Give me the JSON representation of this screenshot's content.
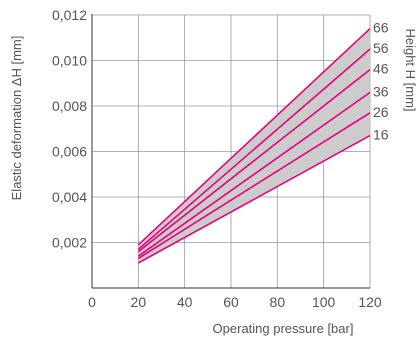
{
  "chart_data": {
    "type": "line",
    "xlabel": "Operating pressure [bar]",
    "ylabel": "Elastic deformation ΔH [mm]",
    "right_label": "Height H [mm]",
    "xlim": [
      0,
      120
    ],
    "ylim": [
      0,
      0.012
    ],
    "xticks": [
      0,
      20,
      40,
      60,
      80,
      100,
      120
    ],
    "xtick_labels": [
      "0",
      "20",
      "40",
      "60",
      "80",
      "100",
      "120"
    ],
    "yticks": [
      0.002,
      0.004,
      0.006,
      0.008,
      0.01,
      0.012
    ],
    "ytick_labels": [
      "0,002",
      "0,004",
      "0,006",
      "0,008",
      "0,010",
      "0,012"
    ],
    "grid": true,
    "band_fill": "#cccccc",
    "line_color": "#e6007e",
    "series": [
      {
        "name": "66",
        "x": [
          20,
          120
        ],
        "y": [
          0.0019,
          0.0114
        ]
      },
      {
        "name": "56",
        "x": [
          20,
          120
        ],
        "y": [
          0.0017,
          0.0105
        ]
      },
      {
        "name": "46",
        "x": [
          20,
          120
        ],
        "y": [
          0.0016,
          0.0096
        ]
      },
      {
        "name": "36",
        "x": [
          20,
          120
        ],
        "y": [
          0.0014,
          0.0086
        ]
      },
      {
        "name": "26",
        "x": [
          20,
          120
        ],
        "y": [
          0.0013,
          0.0077
        ]
      },
      {
        "name": "16",
        "x": [
          20,
          120
        ],
        "y": [
          0.0011,
          0.0067
        ]
      }
    ]
  }
}
